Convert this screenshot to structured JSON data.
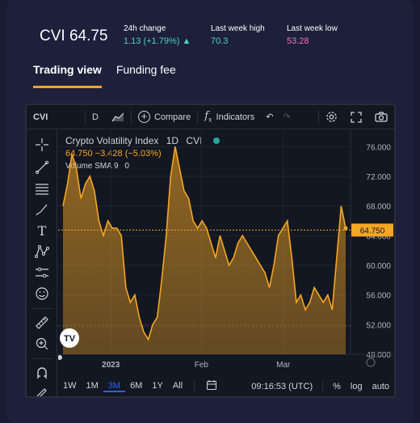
{
  "header": {
    "symbol_value": "CVI 64.75",
    "stats": [
      {
        "label": "24h change",
        "value": "1.13 (+1.79%)",
        "color": "#4fd1c5"
      },
      {
        "label": "Last week high",
        "value": "70.3",
        "color": "#4fd1c5"
      },
      {
        "label": "Last week low",
        "value": "53.28",
        "color": "#f472b6"
      }
    ]
  },
  "tabs": [
    {
      "label": "Trading view",
      "active": true
    },
    {
      "label": "Funding fee",
      "active": false
    }
  ],
  "toolbar": {
    "symbol": "CVI",
    "interval": "D",
    "compare_label": "Compare",
    "indicators_label": "Indicators"
  },
  "legend": {
    "title": "Crypto Volatility Index",
    "interval": "1D",
    "exchange": "CVI",
    "ohlc": "64.750  −3.428 (−5.03%)",
    "volume": "Volume SMA 9",
    "volume_value": "0"
  },
  "bottom": {
    "ranges": [
      "1W",
      "1M",
      "3M",
      "6M",
      "1Y",
      "All"
    ],
    "active_range": "3M",
    "time": "09:16:53 (UTC)",
    "percent": "%",
    "log": "log",
    "auto": "auto"
  },
  "colors": {
    "accent": "#f6a623",
    "up": "#4fd1c5",
    "down": "#f472b6"
  },
  "chart_data": {
    "type": "area",
    "ylim": [
      48,
      78
    ],
    "yticks": [
      "76.000",
      "72.000",
      "68.000",
      "64.000",
      "60.000",
      "56.000",
      "52.000",
      "48.000"
    ],
    "xticks": [
      "2023",
      "Feb",
      "Mar"
    ],
    "last_price_label": "64.750",
    "grid": true,
    "values": [
      68,
      71,
      75,
      73,
      69,
      71,
      72,
      70,
      66,
      64,
      66,
      65,
      65,
      64,
      57,
      55,
      56,
      53,
      51,
      50,
      52,
      53,
      58,
      64,
      72,
      76,
      73,
      70,
      69,
      66,
      65,
      66,
      65,
      63,
      61,
      64,
      62,
      60,
      61,
      63,
      64,
      63,
      62,
      61,
      60,
      59,
      57,
      60,
      64,
      65,
      66,
      61,
      55,
      56,
      54,
      55,
      57,
      56,
      55,
      56,
      54,
      61,
      68,
      65
    ]
  }
}
